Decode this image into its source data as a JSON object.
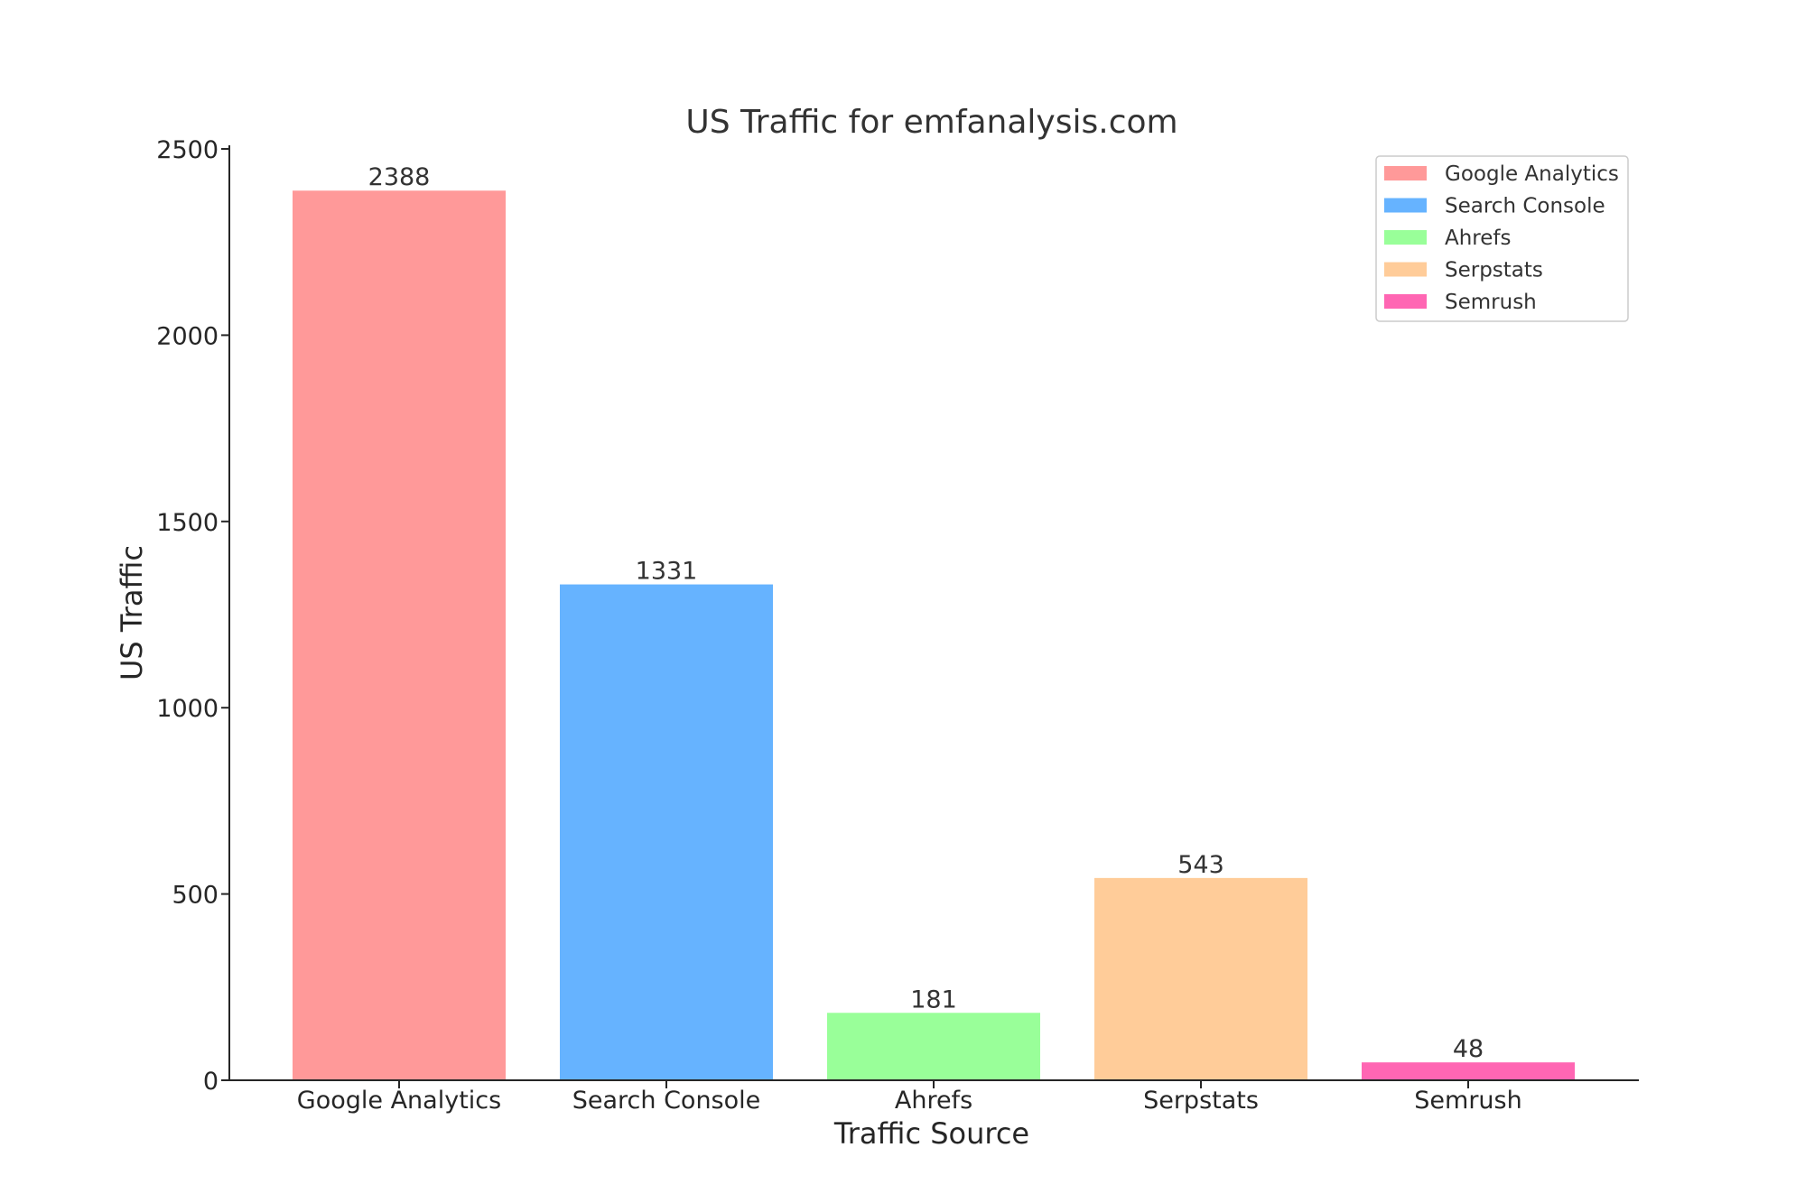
{
  "chart_data": {
    "type": "bar",
    "title": "US Traffic for emfanalysis.com",
    "xlabel": "Traffic Source",
    "ylabel": "US Traffic",
    "ylim": [
      0,
      2500
    ],
    "yticks": [
      0,
      500,
      1000,
      1500,
      2000,
      2500
    ],
    "categories": [
      "Google Analytics",
      "Search Console",
      "Ahrefs",
      "Serpstats",
      "Semrush"
    ],
    "values": [
      2388,
      1331,
      181,
      543,
      48
    ],
    "colors": [
      "#ff9999",
      "#66b3ff",
      "#99ff99",
      "#ffcc99",
      "#ff66b3"
    ],
    "value_labels": true,
    "grid": false,
    "legend": {
      "placement": "top-right",
      "entries": [
        "Google Analytics",
        "Search Console",
        "Ahrefs",
        "Serpstats",
        "Semrush"
      ]
    }
  }
}
